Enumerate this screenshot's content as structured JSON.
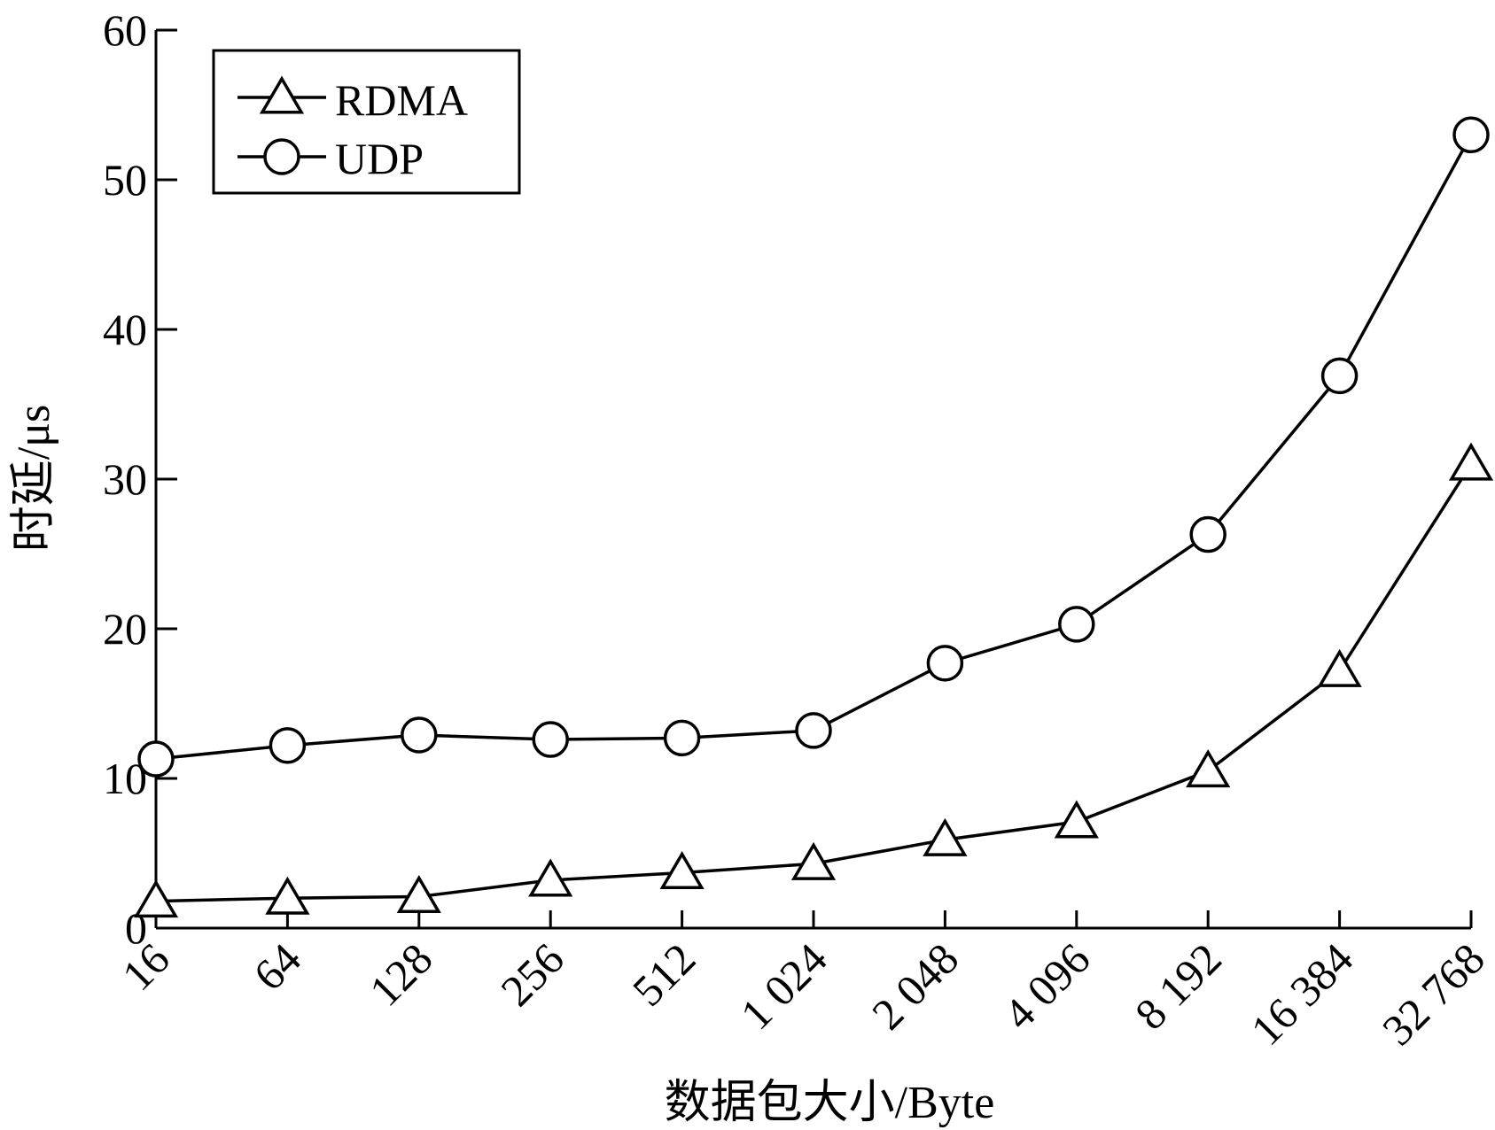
{
  "chart_data": {
    "type": "line",
    "categories": [
      "16",
      "64",
      "128",
      "256",
      "512",
      "1 024",
      "2 048",
      "4 096",
      "8 192",
      "16 384",
      "32 768"
    ],
    "series": [
      {
        "name": "RDMA",
        "marker": "triangle",
        "values": [
          1.8,
          2.0,
          2.1,
          3.2,
          3.7,
          4.3,
          5.9,
          7.1,
          10.5,
          17.2,
          31.0
        ]
      },
      {
        "name": "UDP",
        "marker": "circle",
        "values": [
          11.3,
          12.2,
          12.9,
          12.6,
          12.7,
          13.2,
          17.7,
          20.3,
          26.3,
          36.9,
          53.0
        ]
      }
    ],
    "xlabel": "数据包大小/Byte",
    "ylabel": "时延/μs",
    "ylim": [
      0,
      60
    ],
    "yticks": [
      0,
      10,
      20,
      30,
      40,
      50,
      60
    ],
    "grid": false,
    "legend_position": "top-left",
    "colors": {
      "line": "#000000",
      "background": "#ffffff"
    }
  }
}
